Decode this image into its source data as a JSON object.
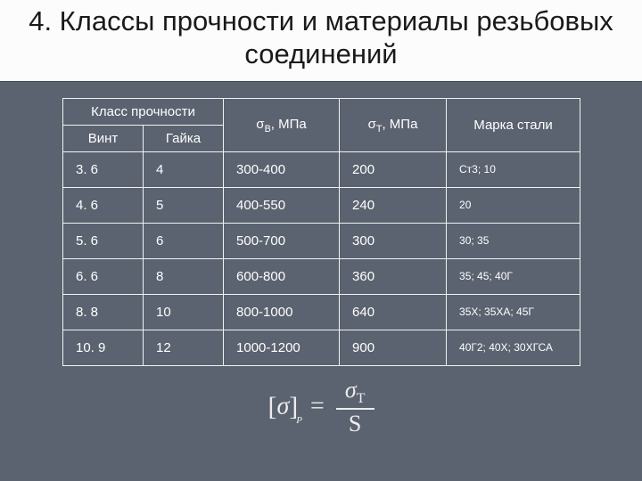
{
  "title": "4. Классы прочности и материалы резьбовых соединений",
  "table": {
    "type": "table",
    "background_color": "#5b6370",
    "border_color": "#f2f2f2",
    "text_color": "#ffffff",
    "header_fontsize": 15,
    "cell_fontsize": 15,
    "mark_fontsize": 12,
    "columns": {
      "class_group": "Класс прочности",
      "screw": "Винт",
      "nut": "Гайка",
      "sigma_b_prefix": "σ",
      "sigma_b_sub": "В",
      "sigma_b_suffix": ", МПа",
      "sigma_t_prefix": "σ",
      "sigma_t_sub": "Т",
      "sigma_t_suffix": ", МПа",
      "steel": "Марка стали"
    },
    "rows": [
      {
        "screw": "3. 6",
        "nut": "4",
        "sigma_b": "300-400",
        "sigma_t": "200",
        "steel": "Ст3; 10"
      },
      {
        "screw": "4. 6",
        "nut": "5",
        "sigma_b": "400-550",
        "sigma_t": "240",
        "steel": "20"
      },
      {
        "screw": "5. 6",
        "nut": "6",
        "sigma_b": "500-700",
        "sigma_t": "300",
        "steel": "30; 35"
      },
      {
        "screw": "6. 6",
        "nut": "8",
        "sigma_b": "600-800",
        "sigma_t": "360",
        "steel": "35; 45; 40Г"
      },
      {
        "screw": "8. 8",
        "nut": "10",
        "sigma_b": "800-1000",
        "sigma_t": "640",
        "steel": "35Х; 35ХА; 45Г"
      },
      {
        "screw": "10. 9",
        "nut": "12",
        "sigma_b": "1000-1200",
        "sigma_t": "900",
        "steel": "40Г2; 40Х; 30ХГСА"
      }
    ]
  },
  "formula": {
    "lbracket": "[",
    "sigma": "σ",
    "rbracket": "]",
    "subscript": "P",
    "equals": " = ",
    "num_sigma": "σ",
    "num_sub": "Т",
    "den": "S",
    "font_family": "Times New Roman",
    "fontsize": 28,
    "color": "#ececec"
  }
}
